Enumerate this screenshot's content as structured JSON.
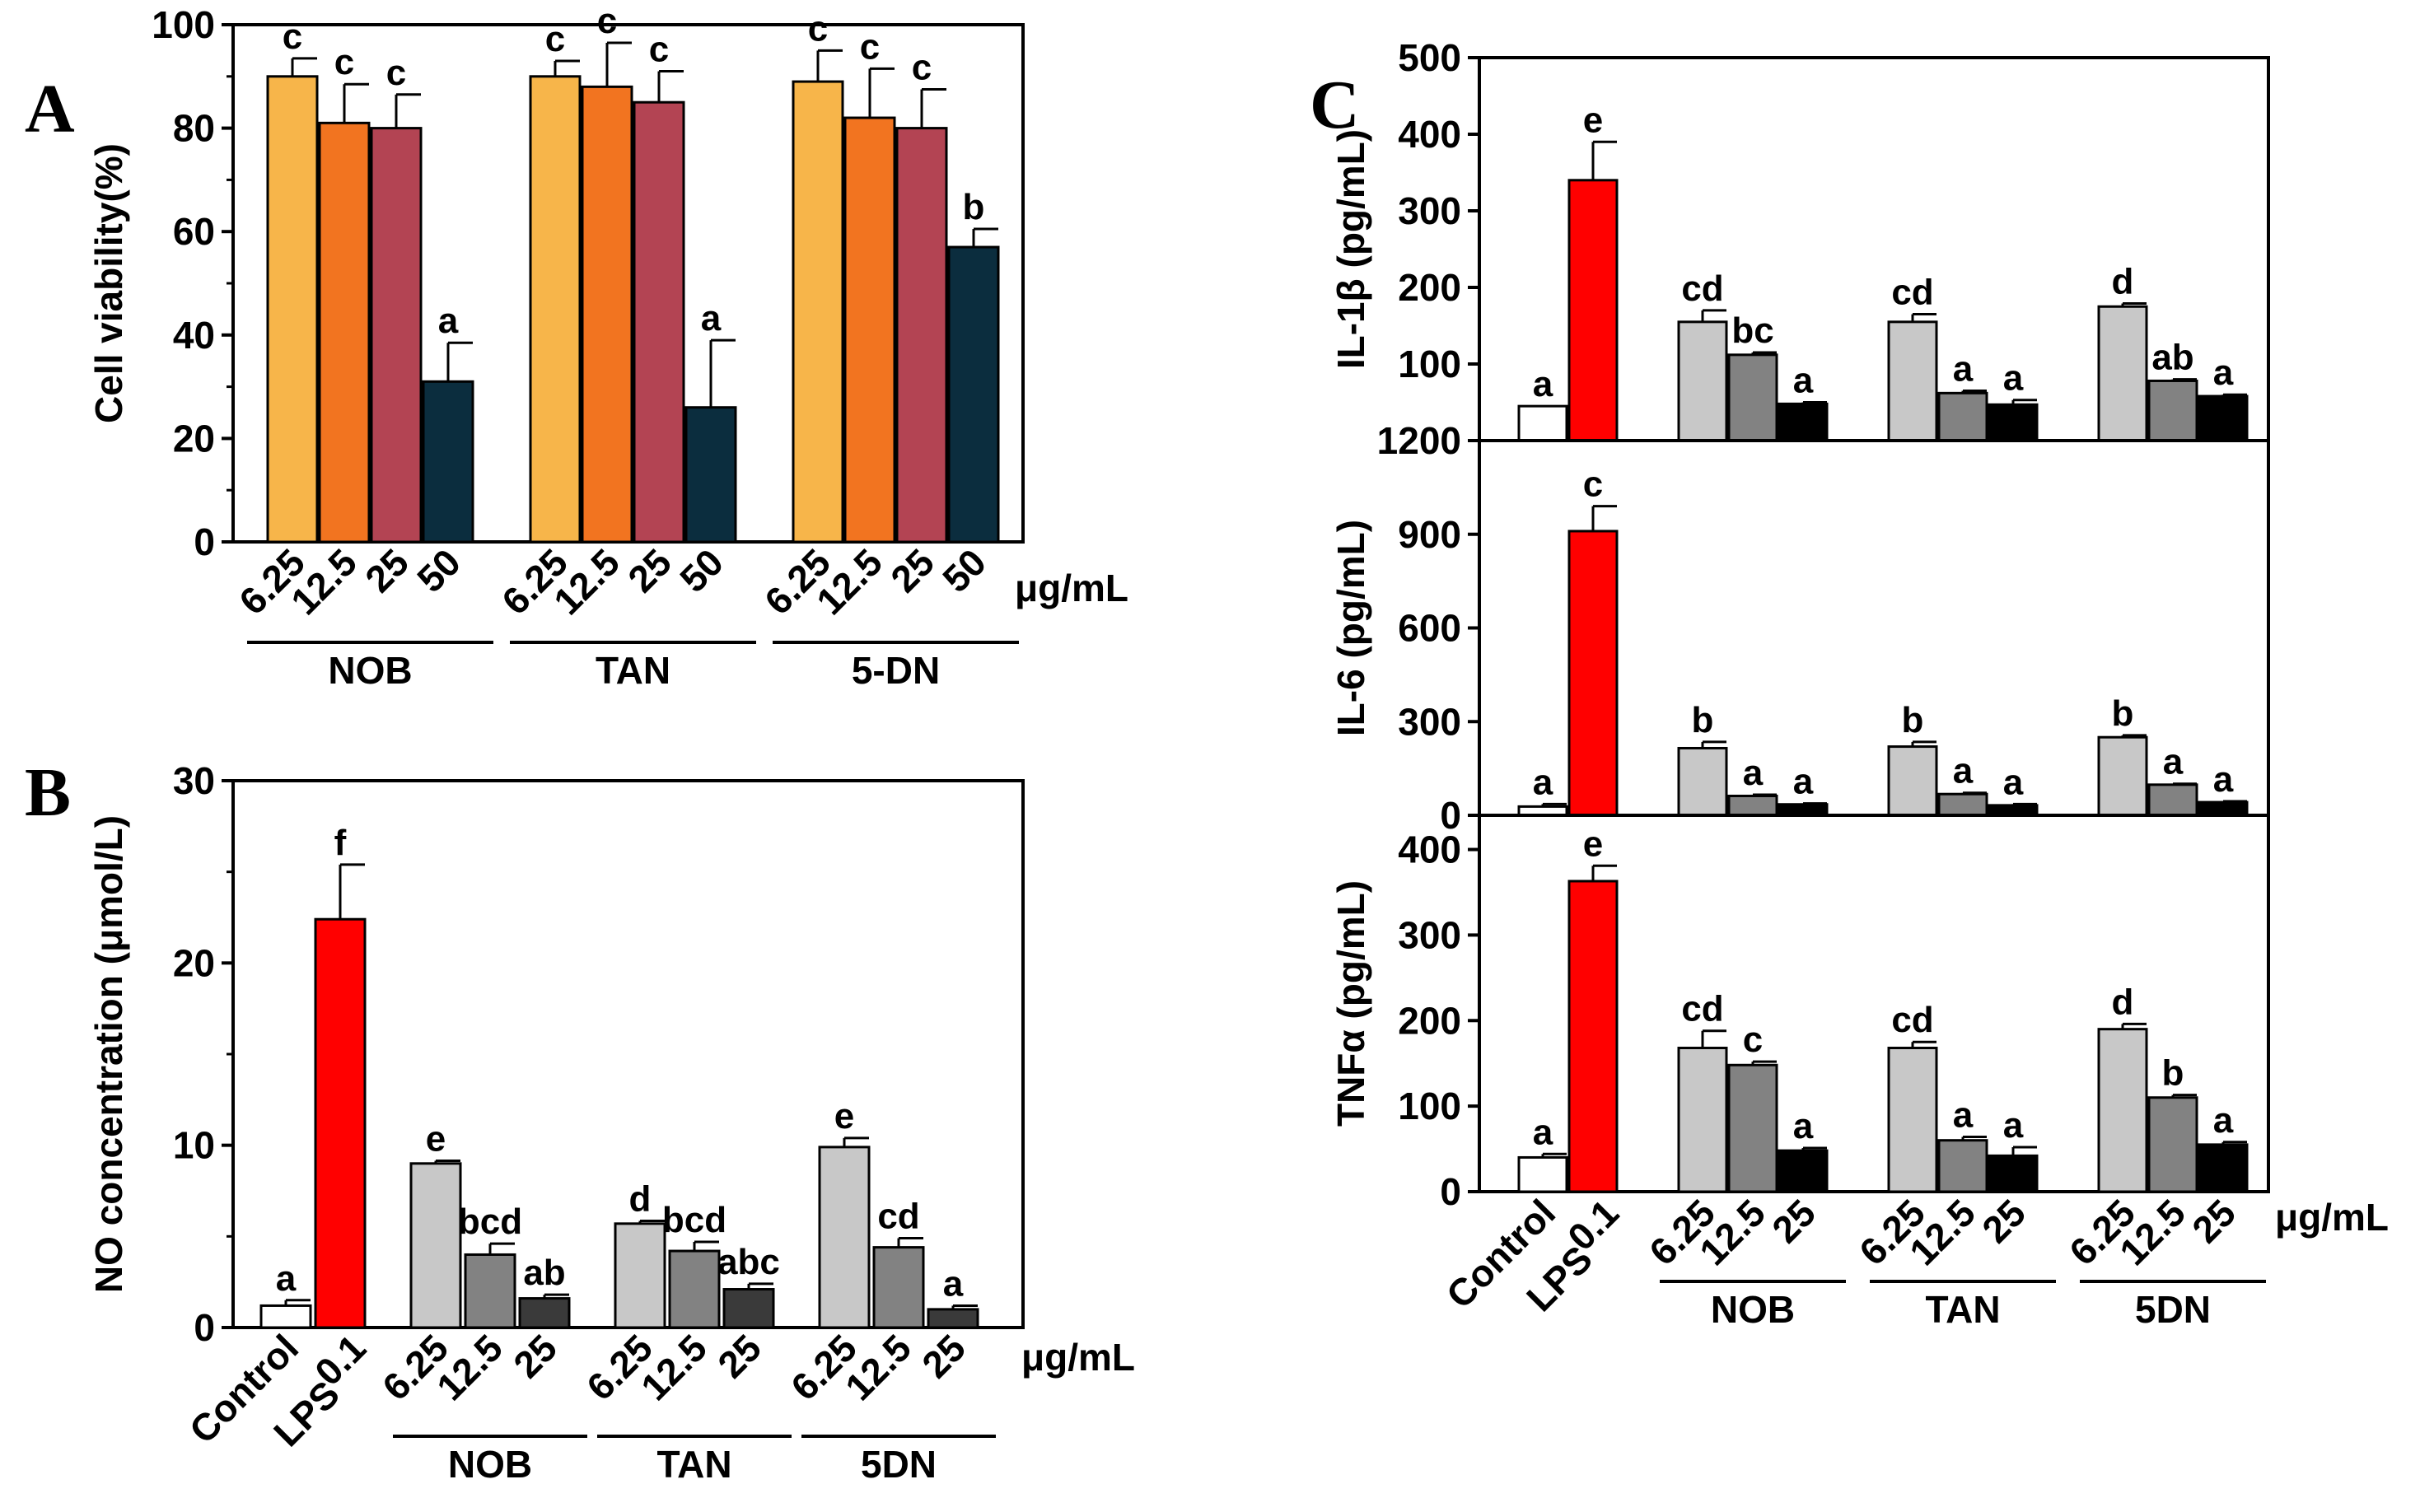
{
  "figure": {
    "unit_label": "μg/mL",
    "panels": [
      {
        "id": "A",
        "letter": "A"
      },
      {
        "id": "B",
        "letter": "B"
      },
      {
        "id": "C",
        "letter": "C"
      }
    ]
  },
  "chart_data": [
    {
      "panel": "A",
      "type": "bar",
      "ylabel": "Cell viability(%)",
      "ylim": [
        0,
        100
      ],
      "yticks": [
        0,
        20,
        40,
        60,
        80,
        100
      ],
      "groups": [
        {
          "label": "NOB",
          "bars": [
            {
              "label": "6.25",
              "value": 90,
              "err": 3.5,
              "sig": "c",
              "color": "#f7b54a"
            },
            {
              "label": "12.5",
              "value": 81,
              "err": 7.5,
              "sig": "c",
              "color": "#f27420"
            },
            {
              "label": "25",
              "value": 80,
              "err": 6.5,
              "sig": "c",
              "color": "#b34453"
            },
            {
              "label": "50",
              "value": 31,
              "err": 7.5,
              "sig": "a",
              "color": "#0b2d3e"
            }
          ]
        },
        {
          "label": "TAN",
          "bars": [
            {
              "label": "6.25",
              "value": 90,
              "err": 3.0,
              "sig": "c",
              "color": "#f7b54a"
            },
            {
              "label": "12.5",
              "value": 88,
              "err": 8.5,
              "sig": "c",
              "color": "#f27420"
            },
            {
              "label": "25",
              "value": 85,
              "err": 6.0,
              "sig": "c",
              "color": "#b34453"
            },
            {
              "label": "50",
              "value": 26,
              "err": 13.0,
              "sig": "a",
              "color": "#0b2d3e"
            }
          ]
        },
        {
          "label": "5-DN",
          "bars": [
            {
              "label": "6.25",
              "value": 89,
              "err": 6.0,
              "sig": "c",
              "color": "#f7b54a"
            },
            {
              "label": "12.5",
              "value": 82,
              "err": 9.5,
              "sig": "c",
              "color": "#f27420"
            },
            {
              "label": "25",
              "value": 80,
              "err": 7.5,
              "sig": "c",
              "color": "#b34453"
            },
            {
              "label": "50",
              "value": 57,
              "err": 3.5,
              "sig": "b",
              "color": "#0b2d3e"
            }
          ]
        }
      ]
    },
    {
      "panel": "B",
      "type": "bar",
      "ylabel": "NO concentration (μmol/L)",
      "ylim": [
        0,
        30
      ],
      "yticks": [
        0,
        10,
        20,
        30
      ],
      "groups": [
        {
          "label": "",
          "bars": [
            {
              "label": "Control",
              "value": 1.2,
              "err": 0.3,
              "sig": "a",
              "color": "#ffffff"
            },
            {
              "label": "LPS",
              "label2": "0.1",
              "value": 22.4,
              "err": 3.0,
              "sig": "f",
              "color": "#ff0000"
            }
          ]
        },
        {
          "label": "NOB",
          "bars": [
            {
              "label": "6.25",
              "value": 9.0,
              "err": 0.15,
              "sig": "e",
              "color": "#c8c8c8"
            },
            {
              "label": "12.5",
              "value": 4.0,
              "err": 0.6,
              "sig": "bcd",
              "color": "#828282"
            },
            {
              "label": "25",
              "value": 1.6,
              "err": 0.2,
              "sig": "ab",
              "color": "#3a3a3a"
            }
          ]
        },
        {
          "label": "TAN",
          "bars": [
            {
              "label": "6.25",
              "value": 5.7,
              "err": 0.15,
              "sig": "d",
              "color": "#c8c8c8"
            },
            {
              "label": "12.5",
              "value": 4.2,
              "err": 0.5,
              "sig": "bcd",
              "color": "#828282"
            },
            {
              "label": "25",
              "value": 2.1,
              "err": 0.3,
              "sig": "abc",
              "color": "#3a3a3a"
            }
          ]
        },
        {
          "label": "5DN",
          "bars": [
            {
              "label": "6.25",
              "value": 9.9,
              "err": 0.5,
              "sig": "e",
              "color": "#c8c8c8"
            },
            {
              "label": "12.5",
              "value": 4.4,
              "err": 0.5,
              "sig": "cd",
              "color": "#828282"
            },
            {
              "label": "25",
              "value": 1.0,
              "err": 0.2,
              "sig": "a",
              "color": "#3a3a3a"
            }
          ]
        }
      ]
    },
    {
      "panel": "C",
      "type": "bar",
      "ylabel": "IL-1β (pg/mL)",
      "ylim": [
        0,
        500
      ],
      "yticks": [
        100,
        200,
        300,
        400,
        500
      ],
      "groups": [
        {
          "label": "",
          "bars": [
            {
              "label": "Control",
              "value": 45,
              "err": 0,
              "sig": "a",
              "color": "#ffffff"
            },
            {
              "label": "LPS",
              "label2": "0.1",
              "value": 340,
              "err": 50,
              "sig": "e",
              "color": "#ff0000"
            }
          ]
        },
        {
          "label": "NOB",
          "bars": [
            {
              "label": "6.25",
              "value": 155,
              "err": 15,
              "sig": "cd",
              "color": "#c8c8c8"
            },
            {
              "label": "12.5",
              "value": 112,
              "err": 3,
              "sig": "bc",
              "color": "#828282"
            },
            {
              "label": "25",
              "value": 48,
              "err": 2,
              "sig": "a",
              "color": "#000000"
            }
          ]
        },
        {
          "label": "TAN",
          "bars": [
            {
              "label": "6.25",
              "value": 155,
              "err": 10,
              "sig": "cd",
              "color": "#c8c8c8"
            },
            {
              "label": "12.5",
              "value": 62,
              "err": 3,
              "sig": "a",
              "color": "#828282"
            },
            {
              "label": "25",
              "value": 47,
              "err": 6,
              "sig": "a",
              "color": "#000000"
            }
          ]
        },
        {
          "label": "5DN",
          "bars": [
            {
              "label": "6.25",
              "value": 175,
              "err": 4,
              "sig": "d",
              "color": "#c8c8c8"
            },
            {
              "label": "12.5",
              "value": 78,
              "err": 2,
              "sig": "ab",
              "color": "#828282"
            },
            {
              "label": "25",
              "value": 58,
              "err": 2,
              "sig": "a",
              "color": "#000000"
            }
          ]
        }
      ]
    },
    {
      "panel": "C",
      "type": "bar",
      "ylabel": "IL-6 (pg/mL)",
      "ylim": [
        0,
        1200
      ],
      "yticks": [
        0,
        300,
        600,
        900,
        1200
      ],
      "groups": [
        {
          "label": "",
          "bars": [
            {
              "label": "Control",
              "value": 28,
              "err": 8,
              "sig": "a",
              "color": "#ffffff"
            },
            {
              "label": "LPS",
              "label2": "0.1",
              "value": 910,
              "err": 80,
              "sig": "c",
              "color": "#ff0000"
            }
          ]
        },
        {
          "label": "NOB",
          "bars": [
            {
              "label": "6.25",
              "value": 215,
              "err": 20,
              "sig": "b",
              "color": "#c8c8c8"
            },
            {
              "label": "12.5",
              "value": 62,
              "err": 4,
              "sig": "a",
              "color": "#828282"
            },
            {
              "label": "25",
              "value": 35,
              "err": 3,
              "sig": "a",
              "color": "#000000"
            }
          ]
        },
        {
          "label": "TAN",
          "bars": [
            {
              "label": "6.25",
              "value": 220,
              "err": 15,
              "sig": "b",
              "color": "#c8c8c8"
            },
            {
              "label": "12.5",
              "value": 68,
              "err": 4,
              "sig": "a",
              "color": "#828282"
            },
            {
              "label": "25",
              "value": 32,
              "err": 4,
              "sig": "a",
              "color": "#000000"
            }
          ]
        },
        {
          "label": "5DN",
          "bars": [
            {
              "label": "6.25",
              "value": 250,
              "err": 6,
              "sig": "b",
              "color": "#c8c8c8"
            },
            {
              "label": "12.5",
              "value": 98,
              "err": 3,
              "sig": "a",
              "color": "#828282"
            },
            {
              "label": "25",
              "value": 42,
              "err": 3,
              "sig": "a",
              "color": "#000000"
            }
          ]
        }
      ]
    },
    {
      "panel": "C",
      "type": "bar",
      "ylabel": "TNFα (pg/mL)",
      "ylim": [
        0,
        440
      ],
      "yticks": [
        0,
        100,
        200,
        300,
        400
      ],
      "groups": [
        {
          "label": "",
          "bars": [
            {
              "label": "Control",
              "value": 40,
              "err": 4,
              "sig": "a",
              "color": "#ffffff"
            },
            {
              "label": "LPS",
              "label2": "0.1",
              "value": 363,
              "err": 18,
              "sig": "e",
              "color": "#ff0000"
            }
          ]
        },
        {
          "label": "NOB",
          "bars": [
            {
              "label": "6.25",
              "value": 168,
              "err": 20,
              "sig": "cd",
              "color": "#c8c8c8"
            },
            {
              "label": "12.5",
              "value": 148,
              "err": 4,
              "sig": "c",
              "color": "#828282"
            },
            {
              "label": "25",
              "value": 48,
              "err": 3,
              "sig": "a",
              "color": "#000000"
            }
          ]
        },
        {
          "label": "TAN",
          "bars": [
            {
              "label": "6.25",
              "value": 168,
              "err": 7,
              "sig": "cd",
              "color": "#c8c8c8"
            },
            {
              "label": "12.5",
              "value": 60,
              "err": 4,
              "sig": "a",
              "color": "#828282"
            },
            {
              "label": "25",
              "value": 42,
              "err": 10,
              "sig": "a",
              "color": "#000000"
            }
          ]
        },
        {
          "label": "5DN",
          "bars": [
            {
              "label": "6.25",
              "value": 190,
              "err": 6,
              "sig": "d",
              "color": "#c8c8c8"
            },
            {
              "label": "12.5",
              "value": 110,
              "err": 3,
              "sig": "b",
              "color": "#828282"
            },
            {
              "label": "25",
              "value": 55,
              "err": 3,
              "sig": "a",
              "color": "#000000"
            }
          ]
        }
      ]
    }
  ]
}
